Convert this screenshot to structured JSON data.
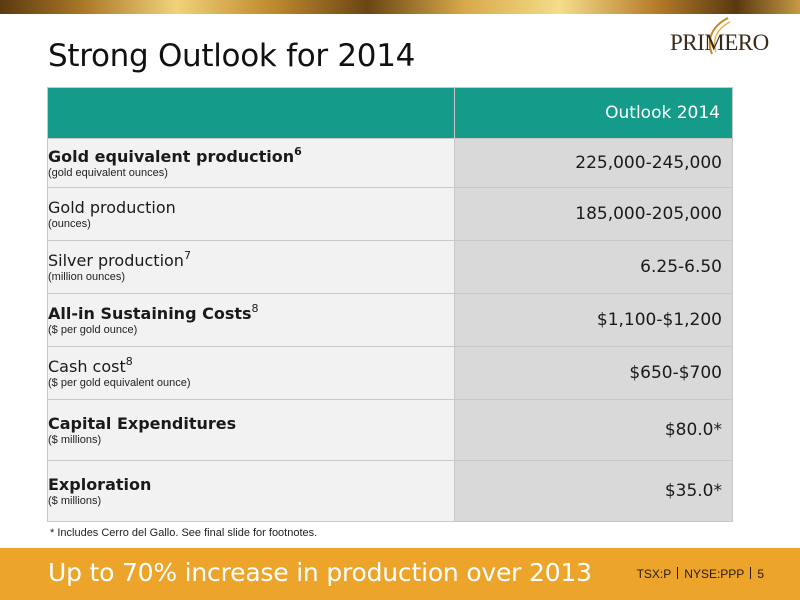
{
  "slide": {
    "title": "Strong Outlook for 2014",
    "logo_text": "PRIMERO",
    "footnote": "* Includes Cerro del Gallo.  See  final slide for footnotes.",
    "tagline": "Up to 70% increase in production over 2013",
    "ticker_1": "TSX:P",
    "ticker_2": "NYSE:PPP",
    "page_number": "5"
  },
  "colors": {
    "header_teal": "#159b8a",
    "bottom_band": "#eda42b",
    "label_cell": "#f2f2f2",
    "value_cell": "#d9d9d9"
  },
  "table": {
    "header": "Outlook 2014",
    "rows": [
      {
        "label": "Gold equivalent production",
        "note": "6",
        "sub": "(gold equivalent ounces)",
        "value": "225,000-245,000",
        "bold": true,
        "indent": false
      },
      {
        "label": "Gold production",
        "note": "",
        "sub": "(ounces)",
        "value": "185,000-205,000",
        "bold": false,
        "indent": true
      },
      {
        "label": "Silver production",
        "note": "7",
        "sub": "(million ounces)",
        "value": "6.25-6.50",
        "bold": false,
        "indent": true
      },
      {
        "label": "All-in Sustaining Costs",
        "note": "8",
        "sub": "($ per gold ounce)",
        "value": "$1,100-$1,200",
        "bold": true,
        "indent": false
      },
      {
        "label": "Cash cost",
        "note": "8",
        "sub": "($ per gold equivalent ounce)",
        "value": "$650-$700",
        "bold": false,
        "indent": true
      },
      {
        "label": "Capital Expenditures",
        "note": "",
        "sub": "($ millions)",
        "value": "$80.0*",
        "bold": true,
        "indent": false
      },
      {
        "label": "Exploration",
        "note": "",
        "sub": "($ millions)",
        "value": "$35.0*",
        "bold": true,
        "indent": false
      }
    ]
  }
}
